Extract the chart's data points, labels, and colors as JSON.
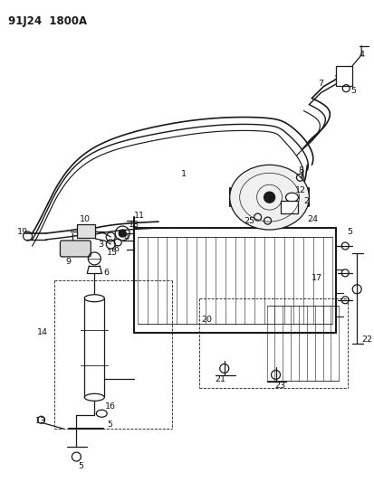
{
  "title": "91J24  1800A",
  "bg_color": "#ffffff",
  "line_color": "#1a1a1a",
  "label_color": "#111111",
  "figsize": [
    4.14,
    5.33
  ],
  "dpi": 100
}
